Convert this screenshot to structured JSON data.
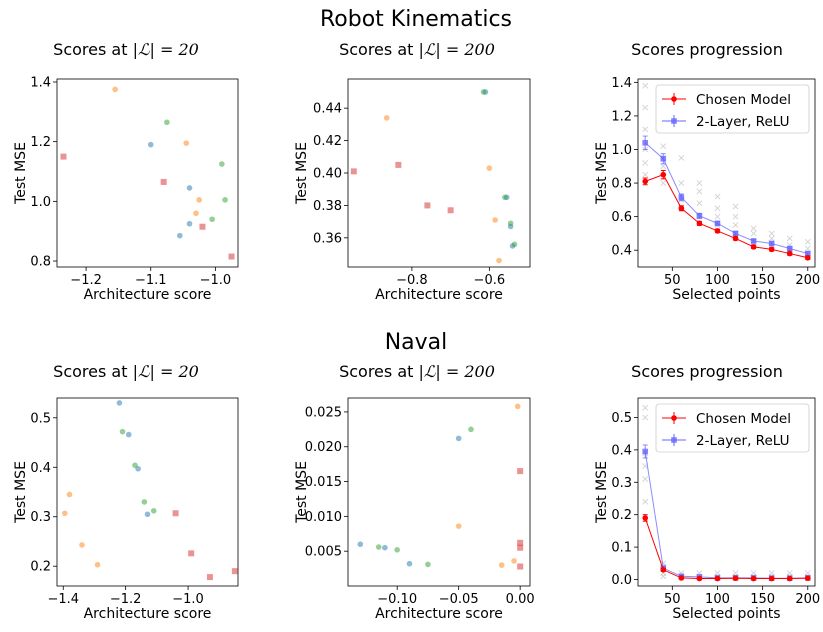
{
  "sections": [
    {
      "title": "Robot Kinematics",
      "panels": [
        {
          "title_prefix": "Scores at ",
          "title_math": "|ℒ| = 20"
        },
        {
          "title_prefix": "Scores at ",
          "title_math": "|ℒ| = 200"
        },
        {
          "title_prefix": "Scores progression",
          "title_math": ""
        }
      ]
    },
    {
      "title": "Naval",
      "panels": [
        {
          "title_prefix": "Scores at ",
          "title_math": "|ℒ| = 20"
        },
        {
          "title_prefix": "Scores at ",
          "title_math": "|ℒ| = 200"
        },
        {
          "title_prefix": "Scores progression",
          "title_math": ""
        }
      ]
    }
  ],
  "colors": {
    "blue": "#1f77b4",
    "orange": "#ff7f0e",
    "green": "#2ca02c",
    "red_sq": "#d62728",
    "chosen": "#ff0000",
    "relu": "#6666ff",
    "gray": "#999999"
  },
  "chart_data": [
    {
      "type": "scatter",
      "xlabel": "Architecture score",
      "ylabel": "Test MSE",
      "xlim": [
        -1.245,
        -0.965
      ],
      "ylim": [
        0.78,
        1.41
      ],
      "xticks": [
        -1.2,
        -1.1,
        -1.0
      ],
      "xticklabels": [
        "−1.2",
        "−1.1",
        "−1.0"
      ],
      "yticks": [
        0.8,
        1.0,
        1.2,
        1.4
      ],
      "yticklabels": [
        "0.8",
        "1.0",
        "1.2",
        "1.4"
      ],
      "series": [
        {
          "color": "blue",
          "marker": "circle",
          "points": [
            [
              -1.1,
              1.19
            ],
            [
              -1.04,
              1.045
            ],
            [
              -1.04,
              0.925
            ],
            [
              -1.055,
              0.885
            ]
          ]
        },
        {
          "color": "orange",
          "marker": "circle",
          "points": [
            [
              -1.155,
              1.375
            ],
            [
              -1.045,
              1.195
            ],
            [
              -1.025,
              1.005
            ],
            [
              -1.03,
              0.96
            ]
          ]
        },
        {
          "color": "green",
          "marker": "circle",
          "points": [
            [
              -1.075,
              1.265
            ],
            [
              -0.99,
              1.125
            ],
            [
              -0.985,
              1.005
            ],
            [
              -1.005,
              0.94
            ]
          ]
        },
        {
          "color": "red_sq",
          "marker": "square",
          "points": [
            [
              -1.235,
              1.15
            ],
            [
              -1.08,
              1.065
            ],
            [
              -1.02,
              0.915
            ],
            [
              -0.975,
              0.815
            ]
          ]
        }
      ]
    },
    {
      "type": "scatter",
      "xlabel": "Architecture score",
      "ylabel": "Test MSE",
      "xlim": [
        -0.965,
        -0.495
      ],
      "ylim": [
        0.342,
        0.458
      ],
      "xticks": [
        -0.8,
        -0.6
      ],
      "xticklabels": [
        "−0.8",
        "−0.6"
      ],
      "yticks": [
        0.36,
        0.38,
        0.4,
        0.42,
        0.44
      ],
      "yticklabels": [
        "0.36",
        "0.38",
        "0.40",
        "0.42",
        "0.44"
      ],
      "series": [
        {
          "color": "blue",
          "marker": "circle",
          "points": [
            [
              -0.61,
              0.45
            ],
            [
              -0.555,
              0.385
            ],
            [
              -0.545,
              0.367
            ],
            [
              -0.54,
              0.355
            ]
          ]
        },
        {
          "color": "orange",
          "marker": "circle",
          "points": [
            [
              -0.865,
              0.434
            ],
            [
              -0.6,
              0.403
            ],
            [
              -0.585,
              0.371
            ],
            [
              -0.575,
              0.346
            ]
          ]
        },
        {
          "color": "green",
          "marker": "circle",
          "points": [
            [
              -0.615,
              0.45
            ],
            [
              -0.56,
              0.385
            ],
            [
              -0.545,
              0.369
            ],
            [
              -0.535,
              0.356
            ]
          ]
        },
        {
          "color": "red_sq",
          "marker": "square",
          "points": [
            [
              -0.95,
              0.401
            ],
            [
              -0.835,
              0.405
            ],
            [
              -0.76,
              0.38
            ],
            [
              -0.7,
              0.377
            ]
          ]
        }
      ]
    },
    {
      "type": "line",
      "xlabel": "Selected points",
      "ylabel": "Test MSE",
      "xlim": [
        12,
        208
      ],
      "ylim": [
        0.3,
        1.42
      ],
      "xticks": [
        50,
        100,
        150,
        200
      ],
      "xticklabels": [
        "50",
        "100",
        "150",
        "200"
      ],
      "yticks": [
        0.4,
        0.6,
        0.8,
        1.0,
        1.2,
        1.4
      ],
      "yticklabels": [
        "0.4",
        "0.6",
        "0.8",
        "1.0",
        "1.2",
        "1.4"
      ],
      "x": [
        20,
        40,
        60,
        80,
        100,
        120,
        140,
        160,
        180,
        200
      ],
      "series": [
        {
          "name": "Chosen Model",
          "color": "chosen",
          "values": [
            0.81,
            0.85,
            0.65,
            0.56,
            0.515,
            0.47,
            0.42,
            0.405,
            0.38,
            0.355
          ],
          "err": [
            0.02,
            0.025,
            0.015,
            0.012,
            0.01,
            0.01,
            0.01,
            0.01,
            0.01,
            0.01
          ]
        },
        {
          "name": "2-Layer, ReLU",
          "color": "relu",
          "values": [
            1.04,
            0.945,
            0.715,
            0.605,
            0.56,
            0.5,
            0.455,
            0.44,
            0.41,
            0.38
          ],
          "err": [
            0.04,
            0.03,
            0.02,
            0.015,
            0.01,
            0.01,
            0.01,
            0.01,
            0.01,
            0.01
          ]
        }
      ],
      "scatter_cloud": [
        [
          20,
          [
            0.85,
            0.92,
            1.0,
            1.12,
            1.25,
            1.38
          ]
        ],
        [
          40,
          [
            0.8,
            0.9,
            0.95,
            1.02
          ]
        ],
        [
          60,
          [
            0.7,
            0.8,
            0.95
          ]
        ],
        [
          80,
          [
            0.6,
            0.68,
            0.75,
            0.8
          ]
        ],
        [
          100,
          [
            0.55,
            0.6,
            0.65,
            0.72
          ]
        ],
        [
          120,
          [
            0.5,
            0.55,
            0.6,
            0.66
          ]
        ],
        [
          140,
          [
            0.45,
            0.5,
            0.53
          ]
        ],
        [
          160,
          [
            0.43,
            0.47,
            0.5
          ]
        ],
        [
          180,
          [
            0.4,
            0.43,
            0.47
          ]
        ],
        [
          200,
          [
            0.37,
            0.41,
            0.45
          ]
        ]
      ],
      "legend": "top-right"
    },
    {
      "type": "scatter",
      "xlabel": "Architecture score",
      "ylabel": "Test MSE",
      "xlim": [
        -1.42,
        -0.84
      ],
      "ylim": [
        0.16,
        0.54
      ],
      "xticks": [
        -1.4,
        -1.2,
        -1.0
      ],
      "xticklabels": [
        "−1.4",
        "−1.2",
        "−1.0"
      ],
      "yticks": [
        0.2,
        0.3,
        0.4,
        0.5
      ],
      "yticklabels": [
        "0.2",
        "0.3",
        "0.4",
        "0.5"
      ],
      "series": [
        {
          "color": "blue",
          "marker": "circle",
          "points": [
            [
              -1.22,
              0.53
            ],
            [
              -1.19,
              0.466
            ],
            [
              -1.16,
              0.397
            ],
            [
              -1.13,
              0.305
            ]
          ]
        },
        {
          "color": "orange",
          "marker": "circle",
          "points": [
            [
              -1.38,
              0.345
            ],
            [
              -1.395,
              0.307
            ],
            [
              -1.34,
              0.243
            ],
            [
              -1.29,
              0.203
            ]
          ]
        },
        {
          "color": "green",
          "marker": "circle",
          "points": [
            [
              -1.21,
              0.472
            ],
            [
              -1.17,
              0.404
            ],
            [
              -1.14,
              0.33
            ],
            [
              -1.11,
              0.312
            ]
          ]
        },
        {
          "color": "red_sq",
          "marker": "square",
          "points": [
            [
              -1.04,
              0.307
            ],
            [
              -0.99,
              0.226
            ],
            [
              -0.93,
              0.178
            ],
            [
              -0.85,
              0.19
            ]
          ]
        }
      ]
    },
    {
      "type": "scatter",
      "xlabel": "Architecture score",
      "ylabel": "Test MSE",
      "xlim": [
        -0.14,
        0.008
      ],
      "ylim": [
        0.0,
        0.027
      ],
      "xticks": [
        -0.1,
        -0.05,
        0.0
      ],
      "xticklabels": [
        "−0.10",
        "−0.05",
        "0.00"
      ],
      "yticks": [
        0.005,
        0.01,
        0.015,
        0.02,
        0.025
      ],
      "yticklabels": [
        "0.005",
        "0.010",
        "0.015",
        "0.020",
        "0.025"
      ],
      "series": [
        {
          "color": "blue",
          "marker": "circle",
          "points": [
            [
              -0.13,
              0.006
            ],
            [
              -0.11,
              0.0055
            ],
            [
              -0.09,
              0.0032
            ],
            [
              -0.05,
              0.0212
            ]
          ]
        },
        {
          "color": "orange",
          "marker": "circle",
          "points": [
            [
              -0.05,
              0.0086
            ],
            [
              -0.015,
              0.003
            ],
            [
              -0.005,
              0.0036
            ],
            [
              -0.002,
              0.0258
            ]
          ]
        },
        {
          "color": "green",
          "marker": "circle",
          "points": [
            [
              -0.115,
              0.0056
            ],
            [
              -0.1,
              0.0052
            ],
            [
              -0.075,
              0.0031
            ],
            [
              -0.04,
              0.0225
            ]
          ]
        },
        {
          "color": "red_sq",
          "marker": "square",
          "points": [
            [
              0.0,
              0.0165
            ],
            [
              0.0,
              0.0062
            ],
            [
              0.0,
              0.0055
            ],
            [
              0.0,
              0.0028
            ]
          ]
        }
      ]
    },
    {
      "type": "line",
      "xlabel": "Selected points",
      "ylabel": "Test MSE",
      "xlim": [
        12,
        208
      ],
      "ylim": [
        -0.02,
        0.56
      ],
      "xticks": [
        50,
        100,
        150,
        200
      ],
      "xticklabels": [
        "50",
        "100",
        "150",
        "200"
      ],
      "yticks": [
        0.0,
        0.1,
        0.2,
        0.3,
        0.4,
        0.5
      ],
      "yticklabels": [
        "0.0",
        "0.1",
        "0.2",
        "0.3",
        "0.4",
        "0.5"
      ],
      "x": [
        20,
        40,
        60,
        80,
        100,
        120,
        140,
        160,
        180,
        200
      ],
      "series": [
        {
          "name": "Chosen Model",
          "color": "chosen",
          "values": [
            0.19,
            0.03,
            0.005,
            0.003,
            0.003,
            0.004,
            0.003,
            0.003,
            0.003,
            0.004
          ],
          "err": [
            0.01,
            0.005,
            0.002,
            0.002,
            0.002,
            0.002,
            0.002,
            0.002,
            0.002,
            0.002
          ]
        },
        {
          "name": "2-Layer, ReLU",
          "color": "relu",
          "values": [
            0.395,
            0.035,
            0.01,
            0.008,
            0.005,
            0.005,
            0.005,
            0.004,
            0.004,
            0.005
          ],
          "err": [
            0.02,
            0.006,
            0.003,
            0.002,
            0.002,
            0.002,
            0.002,
            0.002,
            0.002,
            0.002
          ]
        }
      ],
      "scatter_cloud": [
        [
          20,
          [
            0.24,
            0.31,
            0.35,
            0.39,
            0.5,
            0.53
          ]
        ],
        [
          40,
          [
            0.01,
            0.02,
            0.04,
            0.05
          ]
        ],
        [
          60,
          [
            0.005,
            0.01,
            0.02
          ]
        ],
        [
          80,
          [
            0.005,
            0.01,
            0.02
          ]
        ],
        [
          100,
          [
            0.005,
            0.01,
            0.02
          ]
        ],
        [
          120,
          [
            0.005,
            0.01,
            0.02
          ]
        ],
        [
          140,
          [
            0.005,
            0.01,
            0.02
          ]
        ],
        [
          160,
          [
            0.005,
            0.01,
            0.02
          ]
        ],
        [
          180,
          [
            0.005,
            0.01,
            0.02
          ]
        ],
        [
          200,
          [
            0.005,
            0.01,
            0.02
          ]
        ]
      ],
      "legend": "top-right"
    }
  ]
}
